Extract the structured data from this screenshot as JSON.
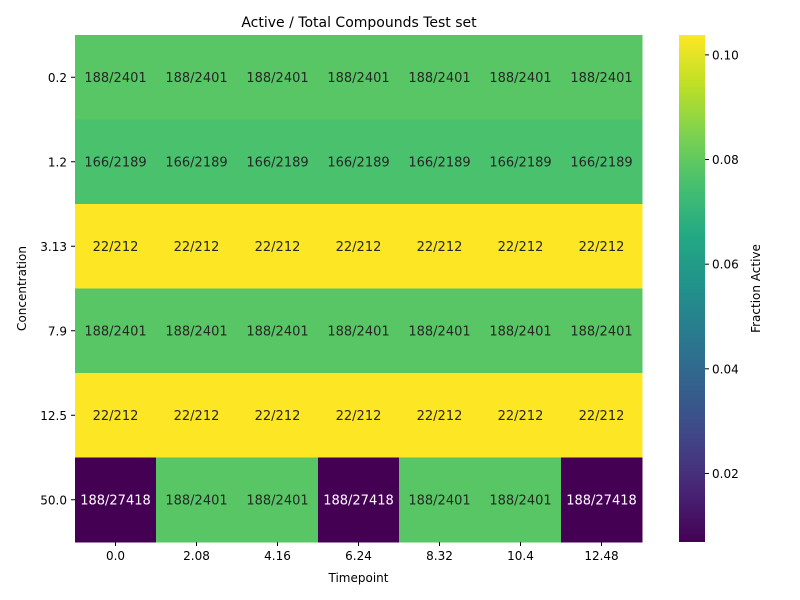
{
  "chart_data": {
    "type": "heatmap",
    "title": "Active / Total Compounds Test set",
    "xlabel": "Timepoint",
    "ylabel": "Concentration",
    "x_categories": [
      "0.0",
      "2.08",
      "4.16",
      "6.24",
      "8.32",
      "10.4",
      "12.48"
    ],
    "y_categories": [
      "0.2",
      "1.2",
      "3.13",
      "7.9",
      "12.5",
      "50.0"
    ],
    "annotations": [
      [
        "188/2401",
        "188/2401",
        "188/2401",
        "188/2401",
        "188/2401",
        "188/2401",
        "188/2401"
      ],
      [
        "166/2189",
        "166/2189",
        "166/2189",
        "166/2189",
        "166/2189",
        "166/2189",
        "166/2189"
      ],
      [
        "22/212",
        "22/212",
        "22/212",
        "22/212",
        "22/212",
        "22/212",
        "22/212"
      ],
      [
        "188/2401",
        "188/2401",
        "188/2401",
        "188/2401",
        "188/2401",
        "188/2401",
        "188/2401"
      ],
      [
        "22/212",
        "22/212",
        "22/212",
        "22/212",
        "22/212",
        "22/212",
        "22/212"
      ],
      [
        "188/27418",
        "188/2401",
        "188/2401",
        "188/27418",
        "188/2401",
        "188/2401",
        "188/27418"
      ]
    ],
    "values": [
      [
        0.0783,
        0.0783,
        0.0783,
        0.0783,
        0.0783,
        0.0783,
        0.0783
      ],
      [
        0.0758,
        0.0758,
        0.0758,
        0.0758,
        0.0758,
        0.0758,
        0.0758
      ],
      [
        0.1038,
        0.1038,
        0.1038,
        0.1038,
        0.1038,
        0.1038,
        0.1038
      ],
      [
        0.0783,
        0.0783,
        0.0783,
        0.0783,
        0.0783,
        0.0783,
        0.0783
      ],
      [
        0.1038,
        0.1038,
        0.1038,
        0.1038,
        0.1038,
        0.1038,
        0.1038
      ],
      [
        0.0069,
        0.0783,
        0.0783,
        0.0069,
        0.0783,
        0.0783,
        0.0069
      ]
    ],
    "colorbar": {
      "label": "Fraction Active",
      "colormap": "viridis",
      "vmin": 0.0069,
      "vmax": 0.1038,
      "ticks": [
        "0.02",
        "0.04",
        "0.06",
        "0.08",
        "0.10"
      ]
    }
  }
}
